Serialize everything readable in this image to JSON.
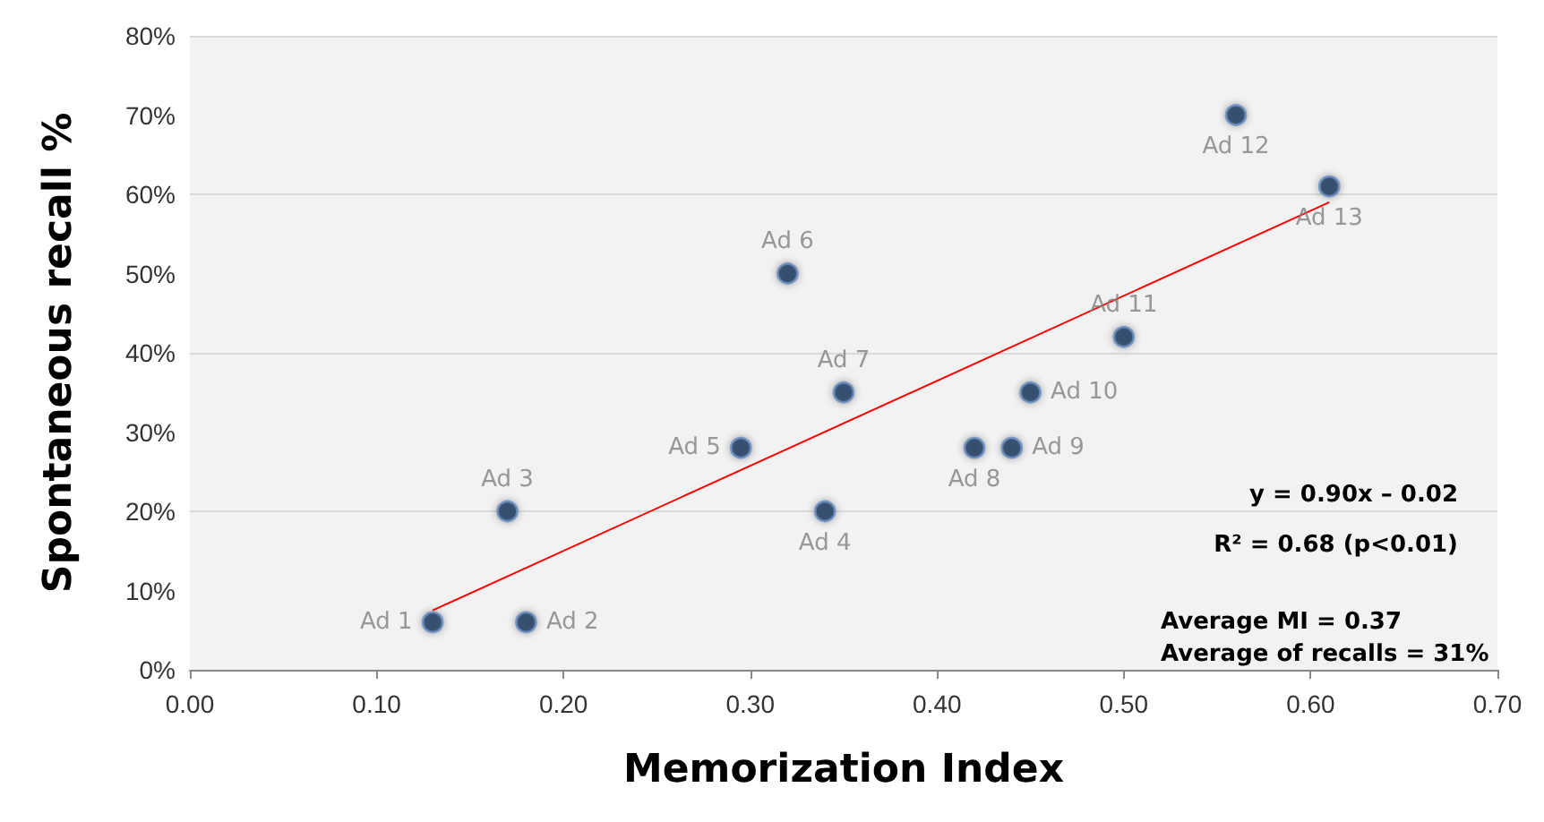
{
  "chart_data": {
    "type": "scatter",
    "xlabel": "Memorization Index",
    "ylabel": "Spontaneous recall %",
    "x": [
      0.13,
      0.18,
      0.17,
      0.34,
      0.295,
      0.32,
      0.35,
      0.42,
      0.44,
      0.45,
      0.5,
      0.56,
      0.61
    ],
    "series": [
      {
        "color": "#17375e",
        "marker": "circle",
        "values": [
          6,
          6,
          20,
          20,
          28,
          50,
          35,
          28,
          28,
          35,
          42,
          70,
          61
        ],
        "value_labels": [
          "Ad 1",
          "Ad 2",
          "Ad 3",
          "Ad 4",
          "Ad 5",
          "Ad 6",
          "Ad 7",
          "Ad 8",
          "Ad 9",
          "Ad 10",
          "Ad 11",
          "Ad 12",
          "Ad 13"
        ]
      },
      {
        "type": "line",
        "marker": "none",
        "color": "#ff0000",
        "x": [
          0.13,
          0.61
        ],
        "values": [
          7.5,
          59
        ]
      }
    ],
    "xlim": [
      0,
      0.7
    ],
    "xticks": [
      {
        "value": 0,
        "label": "0.00"
      },
      {
        "value": 0.1,
        "label": "0.10"
      },
      {
        "value": 0.2,
        "label": "0.20"
      },
      {
        "value": 0.3,
        "label": "0.30"
      },
      {
        "value": 0.4,
        "label": "0.40"
      },
      {
        "value": 0.5,
        "label": "0.50"
      },
      {
        "value": 0.6,
        "label": "0.60"
      },
      {
        "value": 0.7,
        "label": "0.70"
      }
    ],
    "ylim": [
      0,
      80
    ],
    "yticks": [
      {
        "value": 0,
        "label": "0%"
      },
      {
        "value": 10,
        "label": "10%"
      },
      {
        "value": 20,
        "label": "20%"
      },
      {
        "value": 30,
        "label": "30%"
      },
      {
        "value": 40,
        "label": "40%"
      },
      {
        "value": 50,
        "label": "50%"
      },
      {
        "value": 60,
        "label": "60%"
      },
      {
        "value": 70,
        "label": "70%"
      },
      {
        "value": 80,
        "label": "80%"
      }
    ],
    "annotations": [
      "y = 0.90x – 0.02",
      "R² = 0.68 (p<0.01)",
      "Average MI = 0.37",
      "Average of recalls = 31%"
    ],
    "grid": "y",
    "line_style": "solid"
  }
}
